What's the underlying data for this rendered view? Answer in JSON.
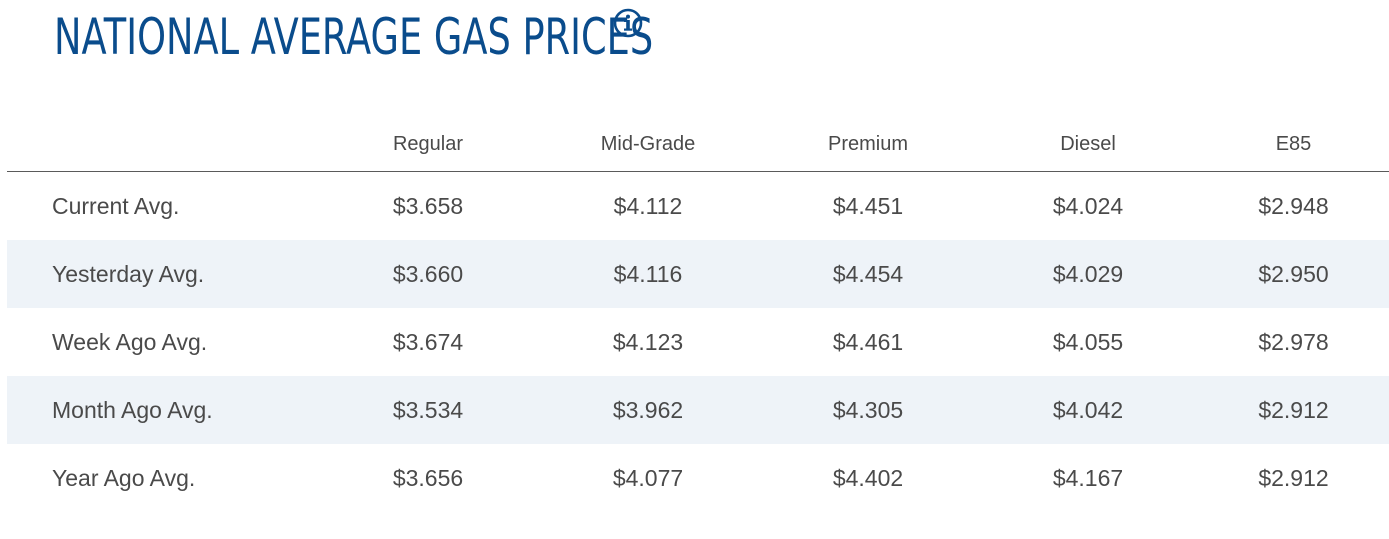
{
  "header": {
    "title": "NATIONAL AVERAGE GAS PRICES",
    "info_icon": "info-circle-icon",
    "title_color": "#0a4c8c"
  },
  "table": {
    "columns": [
      "",
      "Regular",
      "Mid-Grade",
      "Premium",
      "Diesel",
      "E85"
    ],
    "rows": [
      {
        "label": "Current Avg.",
        "values": [
          "$3.658",
          "$4.112",
          "$4.451",
          "$4.024",
          "$2.948"
        ]
      },
      {
        "label": "Yesterday Avg.",
        "values": [
          "$3.660",
          "$4.116",
          "$4.454",
          "$4.029",
          "$2.950"
        ]
      },
      {
        "label": "Week Ago Avg.",
        "values": [
          "$3.674",
          "$4.123",
          "$4.461",
          "$4.055",
          "$2.978"
        ]
      },
      {
        "label": "Month Ago Avg.",
        "values": [
          "$3.534",
          "$3.962",
          "$4.305",
          "$4.042",
          "$2.912"
        ]
      },
      {
        "label": "Year Ago Avg.",
        "values": [
          "$3.656",
          "$4.077",
          "$4.402",
          "$4.167",
          "$2.912"
        ]
      }
    ],
    "stripe_color": "#eef3f8",
    "text_color": "#4a4a4a"
  }
}
